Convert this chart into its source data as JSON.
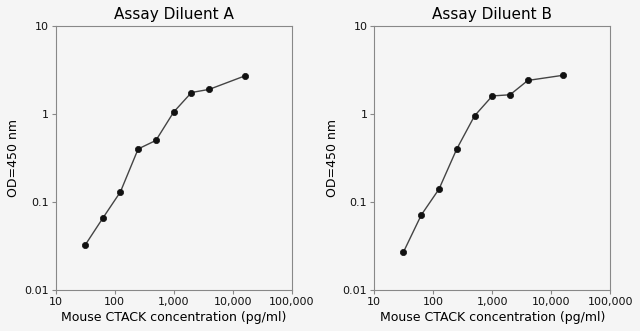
{
  "panel_A": {
    "title": "Assay Diluent A",
    "x": [
      31.25,
      62.5,
      125,
      250,
      500,
      1000,
      2000,
      4000,
      16000
    ],
    "y": [
      0.032,
      0.065,
      0.13,
      0.4,
      0.5,
      1.05,
      1.75,
      1.9,
      2.7
    ]
  },
  "panel_B": {
    "title": "Assay Diluent B",
    "x": [
      31.25,
      62.5,
      125,
      250,
      500,
      1000,
      2000,
      4000,
      16000
    ],
    "y": [
      0.027,
      0.071,
      0.14,
      0.4,
      0.95,
      1.6,
      1.65,
      2.4,
      2.75
    ]
  },
  "xlabel": "Mouse CTACK concentration (pg/ml)",
  "ylabel": "OD=450 nm",
  "xlim": [
    20,
    100000
  ],
  "ylim": [
    0.01,
    10
  ],
  "xticks": [
    10,
    100,
    1000,
    10000,
    100000
  ],
  "xtick_labels": [
    "10",
    "100",
    "1,000",
    "10,000",
    "100,000"
  ],
  "yticks": [
    0.01,
    0.1,
    1,
    10
  ],
  "ytick_labels": [
    "0.01",
    "0.1",
    "1",
    "10"
  ],
  "line_color": "#444444",
  "marker_color": "#111111",
  "bg_color": "#f5f5f5",
  "title_fontsize": 11,
  "label_fontsize": 9,
  "tick_fontsize": 8
}
